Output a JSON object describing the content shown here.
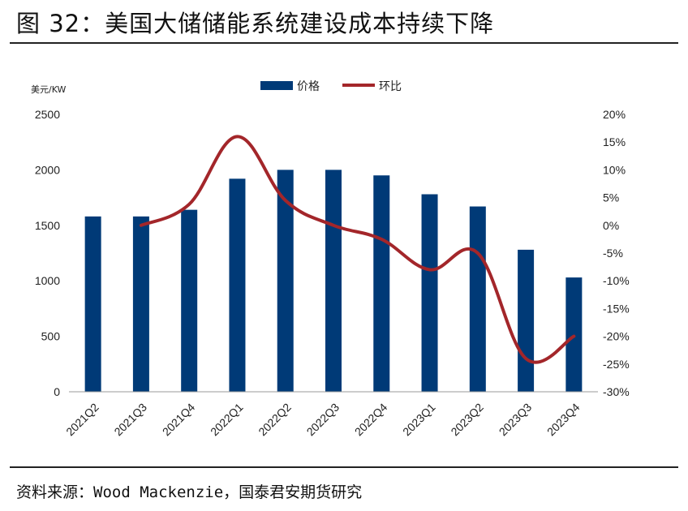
{
  "figure": {
    "title": "图 32：美国大储储能系统建设成本持续下降",
    "source": "资料来源：Wood Mackenzie，国泰君安期货研究"
  },
  "colors": {
    "bar": "#003a77",
    "line": "#a3262a"
  },
  "chart_data": {
    "type": "bar",
    "title": "",
    "categories": [
      "2021Q2",
      "2021Q3",
      "2021Q4",
      "2022Q1",
      "2022Q2",
      "2022Q3",
      "2022Q4",
      "2023Q1",
      "2023Q2",
      "2023Q3",
      "2023Q4"
    ],
    "series": [
      {
        "name": "价格",
        "type": "bar",
        "axis": "left",
        "values": [
          1580,
          1580,
          1640,
          1920,
          2000,
          2000,
          1950,
          1780,
          1670,
          1280,
          1030
        ]
      },
      {
        "name": "环比",
        "type": "line",
        "axis": "right",
        "unit": "%",
        "values": [
          null,
          0,
          3.8,
          16,
          4.5,
          0,
          -2.5,
          -8,
          -5,
          -24,
          -20
        ]
      }
    ],
    "ylabel": "美元/KW",
    "ylim": [
      0,
      2500
    ],
    "yticks": [
      "2500",
      "2000",
      "1500",
      "1000",
      "500",
      "0"
    ],
    "y2lim": [
      -30,
      20
    ],
    "y2ticks": [
      "20%",
      "15%",
      "10%",
      "5%",
      "0%",
      "-5%",
      "-10%",
      "-15%",
      "-20%",
      "-25%",
      "-30%"
    ],
    "legend_position": "top-center",
    "grid": false
  }
}
